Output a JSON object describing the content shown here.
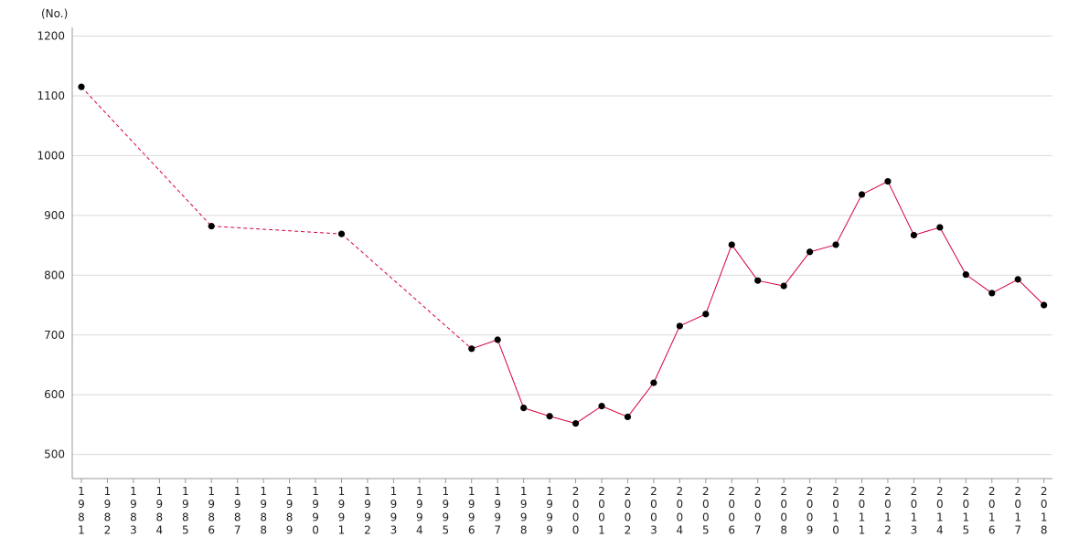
{
  "chart_data": {
    "type": "line",
    "unit_label": "(No.)",
    "categories": [
      "1981",
      "1982",
      "1983",
      "1984",
      "1985",
      "1986",
      "1987",
      "1988",
      "1989",
      "1990",
      "1991",
      "1992",
      "1993",
      "1994",
      "1995",
      "1996",
      "1997",
      "1998",
      "1999",
      "2000",
      "2001",
      "2002",
      "2003",
      "2004",
      "2005",
      "2006",
      "2007",
      "2008",
      "2009",
      "2010",
      "2011",
      "2012",
      "2013",
      "2014",
      "2015",
      "2016",
      "2017",
      "2018"
    ],
    "ylim": [
      460,
      1220
    ],
    "yticks": [
      500,
      600,
      700,
      800,
      900,
      1000,
      1100,
      1200
    ],
    "grid": true,
    "line_color": "#d6003a",
    "point_color": "#000000",
    "grid_color": "#d9d9d9",
    "points": [
      {
        "x": "1981",
        "y": 1115
      },
      {
        "x": "1986",
        "y": 882
      },
      {
        "x": "1991",
        "y": 869
      },
      {
        "x": "1996",
        "y": 677
      },
      {
        "x": "1997",
        "y": 692
      },
      {
        "x": "1998",
        "y": 578
      },
      {
        "x": "1999",
        "y": 564
      },
      {
        "x": "2000",
        "y": 552
      },
      {
        "x": "2001",
        "y": 581
      },
      {
        "x": "2002",
        "y": 563
      },
      {
        "x": "2003",
        "y": 620
      },
      {
        "x": "2004",
        "y": 715
      },
      {
        "x": "2005",
        "y": 735
      },
      {
        "x": "2006",
        "y": 851
      },
      {
        "x": "2007",
        "y": 791
      },
      {
        "x": "2008",
        "y": 782
      },
      {
        "x": "2009",
        "y": 839
      },
      {
        "x": "2010",
        "y": 851
      },
      {
        "x": "2011",
        "y": 935
      },
      {
        "x": "2012",
        "y": 957
      },
      {
        "x": "2013",
        "y": 867
      },
      {
        "x": "2014",
        "y": 880
      },
      {
        "x": "2015",
        "y": 801
      },
      {
        "x": "2016",
        "y": 770
      },
      {
        "x": "2017",
        "y": 793
      },
      {
        "x": "2018",
        "y": 750
      }
    ]
  }
}
